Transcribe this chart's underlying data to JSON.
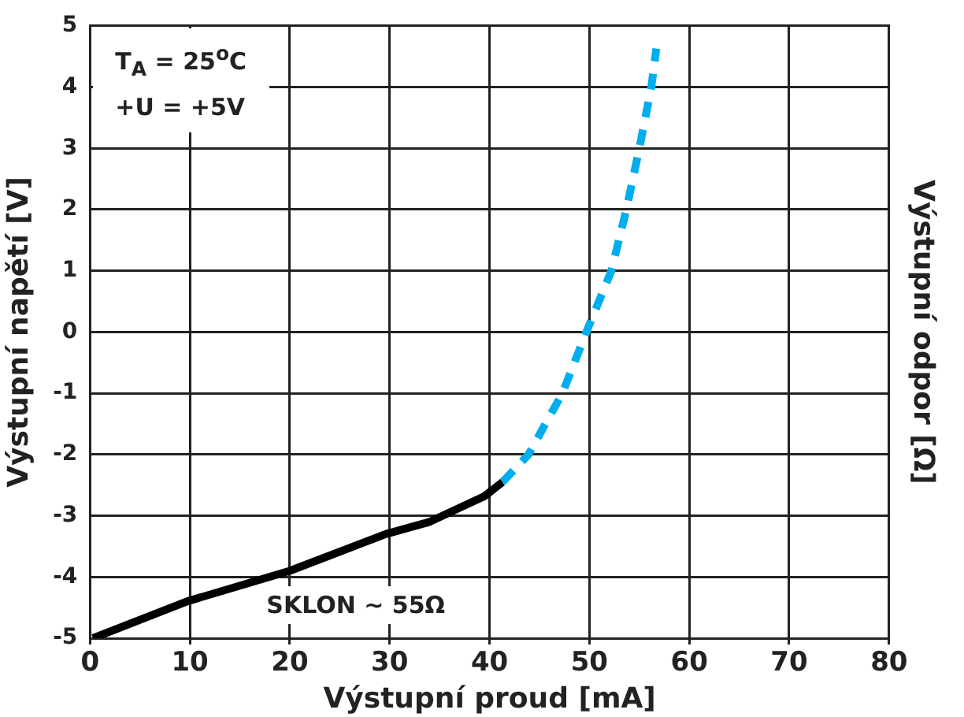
{
  "chart_data": {
    "type": "line",
    "xlabel": "Výstupní proud [mA]",
    "ylabel": "Výstupní napětí [V]",
    "y2label": "Výstupní odpor [Ω]",
    "xlim": [
      0,
      80
    ],
    "xticks": [
      0,
      10,
      20,
      30,
      40,
      50,
      60,
      70,
      80
    ],
    "ylim": [
      -5,
      5
    ],
    "yticks": [
      -5,
      -4,
      -3,
      -2,
      -1,
      0,
      1,
      2,
      3,
      4,
      5
    ],
    "grid": true,
    "legend": false,
    "marker": "none",
    "annotations": [
      {
        "text": "T$_{A}$ = 25$^{o}$C"
      },
      {
        "text": "+U = +5V"
      },
      {
        "text": "SKLON ~ 55Ω"
      }
    ],
    "series": [
      {
        "color": "#000000",
        "line_style": "solid",
        "x": [
          0.3,
          9.7,
          20,
          29.6,
          34,
          39.5,
          41.3
        ],
        "values": [
          -5,
          -4.4,
          -3.9,
          -3.3,
          -3.1,
          -2.68,
          -2.45
        ]
      },
      {
        "color": "#00aeef",
        "line_style": "dashed",
        "x": [
          41.3,
          43.9,
          47.3,
          49.7,
          52.2,
          53.7,
          55,
          56.2,
          56.7
        ],
        "values": [
          -2.45,
          -2,
          -1,
          0,
          1,
          2,
          3,
          4,
          4.63
        ]
      }
    ]
  }
}
